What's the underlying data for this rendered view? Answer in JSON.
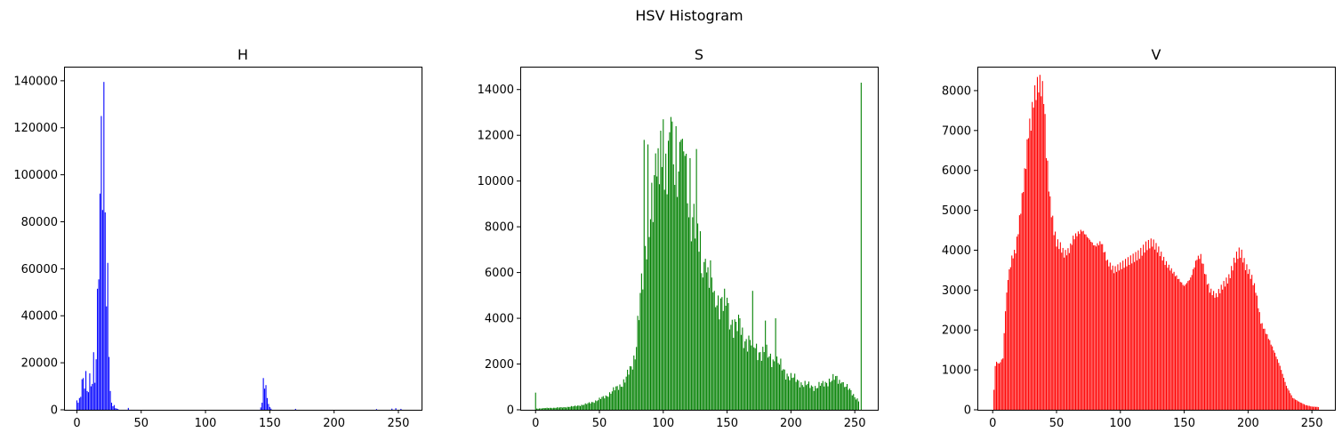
{
  "figure": {
    "title": "HSV Histogram"
  },
  "chart_data": [
    {
      "type": "bar",
      "title": "H",
      "color": "#0000ff",
      "xlim": [
        -10,
        268
      ],
      "ylim": [
        0,
        146000
      ],
      "xticks": [
        0,
        50,
        100,
        150,
        200,
        250
      ],
      "yticks": [
        0,
        20000,
        40000,
        60000,
        80000,
        100000,
        120000,
        140000
      ],
      "grid": false,
      "series": [
        {
          "points": [
            [
              0,
              4000
            ],
            [
              1,
              3000
            ],
            [
              2,
              5000
            ],
            [
              3,
              5500
            ],
            [
              4,
              13000
            ],
            [
              5,
              13500
            ],
            [
              6,
              9000
            ],
            [
              7,
              16500
            ],
            [
              8,
              8000
            ],
            [
              9,
              7500
            ],
            [
              10,
              15500
            ],
            [
              11,
              10000
            ],
            [
              12,
              11000
            ],
            [
              13,
              24500
            ],
            [
              14,
              11500
            ],
            [
              15,
              21500
            ],
            [
              16,
              51500
            ],
            [
              17,
              55500
            ],
            [
              18,
              92000
            ],
            [
              19,
              125000
            ],
            [
              20,
              85000
            ],
            [
              21,
              139500
            ],
            [
              22,
              84000
            ],
            [
              23,
              44000
            ],
            [
              24,
              62500
            ],
            [
              25,
              22500
            ],
            [
              26,
              8000
            ],
            [
              27,
              3000
            ],
            [
              28,
              1500
            ],
            [
              29,
              2000
            ],
            [
              30,
              700
            ],
            [
              31,
              500
            ],
            [
              32,
              300
            ],
            [
              40,
              800
            ],
            [
              143,
              1000
            ],
            [
              144,
              3000
            ],
            [
              145,
              13500
            ],
            [
              146,
              9000
            ],
            [
              147,
              10500
            ],
            [
              148,
              5000
            ],
            [
              149,
              2500
            ],
            [
              150,
              1200
            ],
            [
              151,
              500
            ],
            [
              170,
              400
            ],
            [
              233,
              300
            ],
            [
              245,
              500
            ],
            [
              248,
              700
            ],
            [
              252,
              400
            ]
          ]
        }
      ]
    },
    {
      "type": "bar",
      "title": "S",
      "color": "#008000",
      "xlim": [
        -12,
        268
      ],
      "ylim": [
        0,
        15000
      ],
      "xticks": [
        0,
        50,
        100,
        150,
        200,
        250
      ],
      "yticks": [
        0,
        2000,
        4000,
        6000,
        8000,
        10000,
        12000,
        14000
      ],
      "grid": false,
      "envelope": {
        "x": [
          0,
          10,
          20,
          30,
          40,
          50,
          55,
          60,
          65,
          70,
          75,
          78,
          80,
          82,
          84,
          86,
          88,
          90,
          92,
          95,
          98,
          100,
          103,
          106,
          110,
          113,
          116,
          120,
          123,
          126,
          130,
          135,
          140,
          145,
          150,
          155,
          160,
          165,
          170,
          175,
          180,
          185,
          190,
          195,
          200,
          205,
          210,
          215,
          220,
          225,
          230,
          235,
          240,
          245,
          250,
          253
        ],
        "y": [
          50,
          80,
          100,
          150,
          250,
          450,
          600,
          800,
          1000,
          1300,
          1800,
          2500,
          3800,
          4800,
          5500,
          7000,
          8200,
          9300,
          9000,
          10200,
          9800,
          10500,
          10300,
          11000,
          11300,
          10800,
          10200,
          9500,
          8600,
          7800,
          6600,
          5800,
          5200,
          4700,
          4300,
          3800,
          3400,
          3100,
          2800,
          2600,
          2400,
          2300,
          2000,
          1700,
          1400,
          1300,
          1100,
          1050,
          1000,
          1100,
          1300,
          1350,
          1200,
          900,
          600,
          400
        ]
      },
      "spikes": [
        [
          0,
          750
        ],
        [
          85,
          11800
        ],
        [
          88,
          11600
        ],
        [
          95,
          10200
        ],
        [
          98,
          12200
        ],
        [
          100,
          12700
        ],
        [
          102,
          11200
        ],
        [
          106,
          12800
        ],
        [
          110,
          12400
        ],
        [
          114,
          11800
        ],
        [
          117,
          11100
        ],
        [
          121,
          11000
        ],
        [
          126,
          11400
        ],
        [
          133,
          6600
        ],
        [
          140,
          5200
        ],
        [
          150,
          4900
        ],
        [
          160,
          4000
        ],
        [
          170,
          5200
        ],
        [
          180,
          3900
        ],
        [
          188,
          4000
        ],
        [
          240,
          1200
        ],
        [
          255,
          14300
        ]
      ]
    },
    {
      "type": "bar",
      "title": "V",
      "color": "#ff0000",
      "xlim": [
        -12,
        268
      ],
      "ylim": [
        0,
        8600
      ],
      "xticks": [
        0,
        50,
        100,
        150,
        200,
        250
      ],
      "yticks": [
        0,
        1000,
        2000,
        3000,
        4000,
        5000,
        6000,
        7000,
        8000
      ],
      "grid": false,
      "envelope": {
        "x": [
          0,
          1,
          2,
          3,
          5,
          8,
          10,
          12,
          15,
          18,
          20,
          23,
          26,
          28,
          30,
          32,
          34,
          36,
          38,
          40,
          42,
          45,
          48,
          50,
          53,
          56,
          60,
          63,
          66,
          70,
          75,
          80,
          85,
          90,
          95,
          100,
          105,
          110,
          115,
          120,
          125,
          130,
          135,
          140,
          145,
          150,
          155,
          160,
          163,
          165,
          168,
          170,
          175,
          180,
          185,
          190,
          193,
          195,
          198,
          200,
          203,
          206,
          208,
          210,
          213,
          216,
          220,
          225,
          230,
          235,
          240,
          245,
          250,
          255
        ],
        "y": [
          0,
          500,
          1100,
          1200,
          1150,
          1300,
          2500,
          3300,
          3800,
          4000,
          4500,
          5300,
          6200,
          7000,
          7200,
          7800,
          8000,
          8200,
          8100,
          7900,
          6500,
          5200,
          4500,
          4200,
          4100,
          3900,
          4000,
          4300,
          4400,
          4500,
          4300,
          4100,
          4200,
          3700,
          3500,
          3600,
          3700,
          3800,
          3900,
          4100,
          4200,
          4000,
          3700,
          3500,
          3300,
          3100,
          3300,
          3800,
          3850,
          3600,
          3200,
          3000,
          2850,
          3100,
          3300,
          3800,
          3950,
          3900,
          3600,
          3500,
          3300,
          3000,
          2600,
          2200,
          2000,
          1800,
          1500,
          1100,
          600,
          300,
          200,
          120,
          80,
          70
        ]
      },
      "spikes": []
    }
  ]
}
